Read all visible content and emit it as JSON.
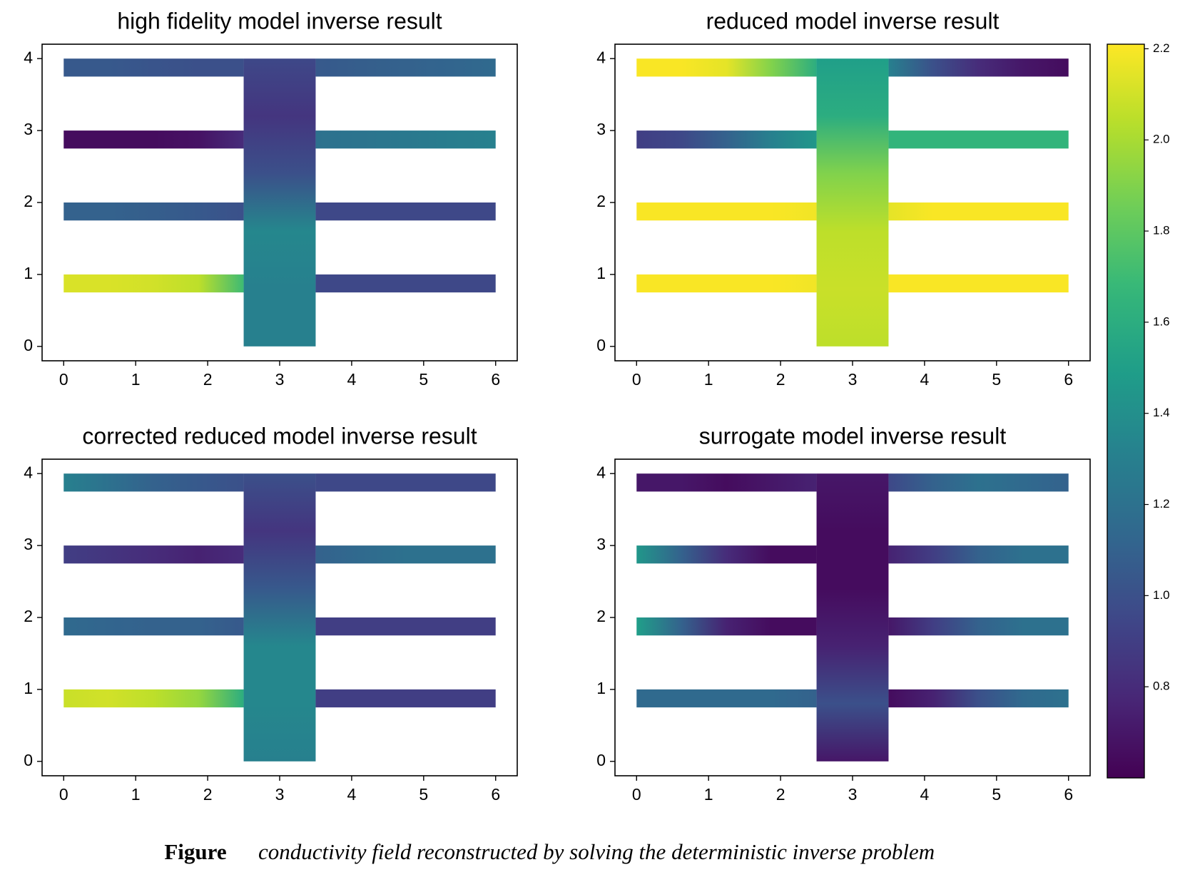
{
  "chart_data": [
    {
      "type": "heatmap",
      "title": "high fidelity model inverse result",
      "xlim": [
        -0.3,
        6.3
      ],
      "ylim": [
        -0.2,
        4.2
      ],
      "xticks": [
        0,
        1,
        2,
        3,
        4,
        5,
        6
      ],
      "yticks": [
        0,
        1,
        2,
        3,
        4
      ],
      "left_arms": [
        [
          2.12,
          2.12,
          2.1,
          2.05,
          1.7
        ],
        [
          1.1,
          1.1,
          1.08,
          1.05,
          1.0
        ],
        [
          0.65,
          0.65,
          0.65,
          0.68,
          0.8
        ],
        [
          1.05,
          1.05,
          1.02,
          1.0,
          1.0
        ]
      ],
      "right_arms": [
        [
          0.95,
          0.95,
          0.95,
          0.95,
          0.95
        ],
        [
          0.95,
          0.95,
          0.95,
          0.95,
          0.95
        ],
        [
          1.2,
          1.22,
          1.25,
          1.28,
          1.3
        ],
        [
          1.05,
          1.08,
          1.1,
          1.12,
          1.15
        ]
      ],
      "trunk": [
        1.3,
        1.3,
        1.35,
        1.0,
        0.85,
        0.95
      ]
    },
    {
      "type": "heatmap",
      "title": "reduced model inverse result",
      "xlim": [
        -0.3,
        6.3
      ],
      "ylim": [
        -0.2,
        4.2
      ],
      "xticks": [
        0,
        1,
        2,
        3,
        4,
        5,
        6
      ],
      "yticks": [
        0,
        1,
        2,
        3,
        4
      ],
      "left_arms": [
        [
          2.2,
          2.2,
          2.2,
          2.2,
          2.18
        ],
        [
          2.2,
          2.2,
          2.2,
          2.2,
          2.18
        ],
        [
          0.9,
          0.95,
          1.1,
          1.3,
          1.45
        ],
        [
          2.2,
          2.2,
          2.15,
          1.9,
          1.6
        ]
      ],
      "right_arms": [
        [
          2.2,
          2.2,
          2.2,
          2.2,
          2.2
        ],
        [
          2.15,
          2.2,
          2.2,
          2.2,
          2.2
        ],
        [
          1.65,
          1.65,
          1.65,
          1.65,
          1.65
        ],
        [
          1.3,
          1.0,
          0.8,
          0.7,
          0.65
        ]
      ],
      "trunk": [
        2.05,
        2.08,
        2.05,
        1.9,
        1.6,
        1.5
      ]
    },
    {
      "type": "heatmap",
      "title": "corrected reduced model inverse result",
      "xlim": [
        -0.3,
        6.3
      ],
      "ylim": [
        -0.2,
        4.2
      ],
      "xticks": [
        0,
        1,
        2,
        3,
        4,
        5,
        6
      ],
      "yticks": [
        0,
        1,
        2,
        3,
        4
      ],
      "left_arms": [
        [
          2.08,
          2.1,
          2.05,
          1.95,
          1.6
        ],
        [
          1.15,
          1.12,
          1.1,
          1.1,
          1.05
        ],
        [
          0.9,
          0.85,
          0.8,
          0.75,
          0.8
        ],
        [
          1.3,
          1.2,
          1.1,
          1.05,
          1.0
        ]
      ],
      "right_arms": [
        [
          0.9,
          0.9,
          0.9,
          0.9,
          0.9
        ],
        [
          0.9,
          0.9,
          0.9,
          0.9,
          0.9
        ],
        [
          1.1,
          1.15,
          1.2,
          1.2,
          1.2
        ],
        [
          0.95,
          0.95,
          0.95,
          0.95,
          0.95
        ]
      ],
      "trunk": [
        1.3,
        1.35,
        1.35,
        1.05,
        0.85,
        1.0
      ]
    },
    {
      "type": "heatmap",
      "title": "surrogate model inverse result",
      "xlim": [
        -0.3,
        6.3
      ],
      "ylim": [
        -0.2,
        4.2
      ],
      "xticks": [
        0,
        1,
        2,
        3,
        4,
        5,
        6
      ],
      "yticks": [
        0,
        1,
        2,
        3,
        4
      ],
      "left_arms": [
        [
          1.15,
          1.15,
          1.15,
          1.15,
          1.1
        ],
        [
          1.5,
          1.1,
          0.75,
          0.65,
          0.65
        ],
        [
          1.45,
          1.1,
          0.8,
          0.65,
          0.65
        ],
        [
          0.7,
          0.7,
          0.65,
          0.7,
          0.75
        ]
      ],
      "right_arms": [
        [
          0.65,
          0.75,
          1.0,
          1.15,
          1.2
        ],
        [
          0.7,
          0.9,
          1.1,
          1.2,
          1.2
        ],
        [
          0.75,
          0.9,
          1.1,
          1.2,
          1.2
        ],
        [
          0.95,
          1.1,
          1.2,
          1.15,
          1.1
        ]
      ],
      "trunk": [
        0.7,
        1.0,
        0.75,
        0.65,
        0.65,
        0.7
      ]
    }
  ],
  "colorbar": {
    "colormap": "viridis",
    "clim": [
      0.6,
      2.21
    ],
    "ticks": [
      0.8,
      {
        "value": 1,
        "label": "1.0"
      },
      1.2,
      1.4,
      1.6,
      1.8,
      {
        "value": 2,
        "label": "2.0"
      },
      2.2
    ]
  },
  "caption": {
    "label": "Figure",
    "text": "conductivity field reconstructed by solving the deterministic inverse problem"
  }
}
